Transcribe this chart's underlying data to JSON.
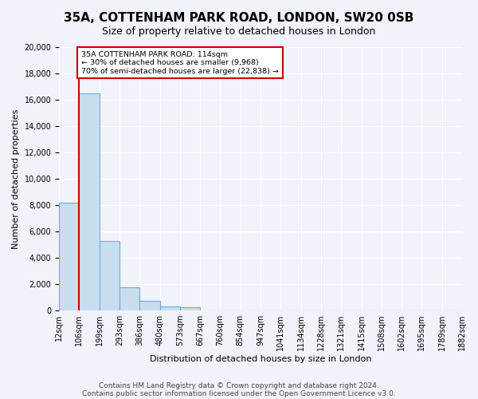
{
  "title": "35A, COTTENHAM PARK ROAD, LONDON, SW20 0SB",
  "subtitle": "Size of property relative to detached houses in London",
  "xlabel": "Distribution of detached houses by size in London",
  "ylabel": "Number of detached properties",
  "bin_labels": [
    "12sqm",
    "106sqm",
    "199sqm",
    "293sqm",
    "386sqm",
    "480sqm",
    "573sqm",
    "667sqm",
    "760sqm",
    "854sqm",
    "947sqm",
    "1041sqm",
    "1134sqm",
    "1228sqm",
    "1321sqm",
    "1415sqm",
    "1508sqm",
    "1602sqm",
    "1695sqm",
    "1789sqm",
    "1882sqm"
  ],
  "bar_heights": [
    8200,
    16500,
    5300,
    1750,
    750,
    300,
    250,
    0,
    0,
    0,
    0,
    0,
    0,
    0,
    0,
    0,
    0,
    0,
    0,
    0
  ],
  "bar_color": "#c9ddf0",
  "bar_edge_color": "#6aaed6",
  "vline_x": 1,
  "vline_color": "#cc0000",
  "ylim": [
    0,
    20000
  ],
  "yticks": [
    0,
    2000,
    4000,
    6000,
    8000,
    10000,
    12000,
    14000,
    16000,
    18000,
    20000
  ],
  "annotation_title": "35A COTTENHAM PARK ROAD: 114sqm",
  "annotation_line1": "← 30% of detached houses are smaller (9,968)",
  "annotation_line2": "70% of semi-detached houses are larger (22,838) →",
  "annotation_box_color": "#ffffff",
  "annotation_box_edge": "#cc0000",
  "footer_line1": "Contains HM Land Registry data © Crown copyright and database right 2024.",
  "footer_line2": "Contains public sector information licensed under the Open Government Licence v3.0.",
  "bg_color": "#f0f4fa",
  "grid_color": "#ffffff",
  "title_fontsize": 11,
  "subtitle_fontsize": 9,
  "axis_fontsize": 8,
  "tick_fontsize": 7,
  "footer_fontsize": 6.5
}
